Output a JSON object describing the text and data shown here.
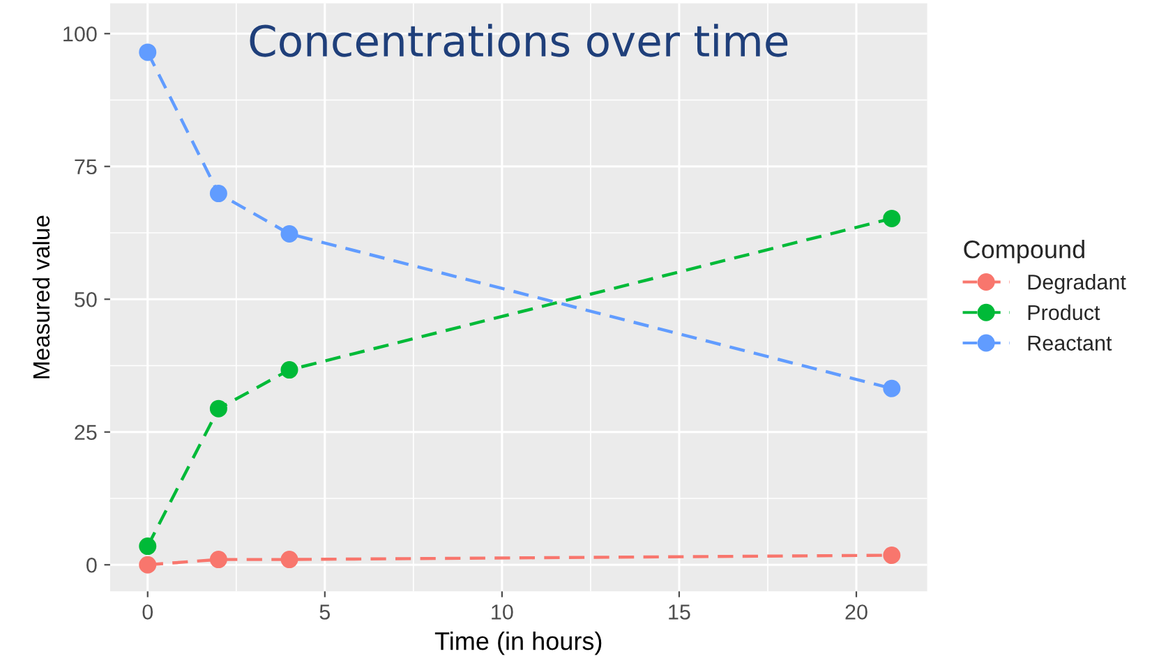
{
  "chart_data": {
    "type": "line",
    "title": "Concentrations over time",
    "xlabel": "Time (in hours)",
    "ylabel": "Measured value",
    "legend_title": "Compound",
    "x": [
      0,
      2,
      4,
      21
    ],
    "series": [
      {
        "name": "Degradant",
        "color": "#f8766d",
        "values": [
          0,
          1,
          1,
          1.8
        ]
      },
      {
        "name": "Product",
        "color": "#00ba38",
        "values": [
          3.5,
          29.4,
          36.7,
          65.2
        ]
      },
      {
        "name": "Reactant",
        "color": "#619cff",
        "values": [
          96.5,
          69.9,
          62.3,
          33.2
        ]
      }
    ],
    "xlim": [
      -1.06,
      22
    ],
    "ylim": [
      -5,
      105.7
    ],
    "xticks": [
      0,
      5,
      10,
      15,
      20
    ],
    "yticks": [
      0,
      25,
      50,
      75,
      100
    ],
    "grid": true,
    "legend": "right",
    "marker": "circle",
    "line_style": "dashed"
  }
}
